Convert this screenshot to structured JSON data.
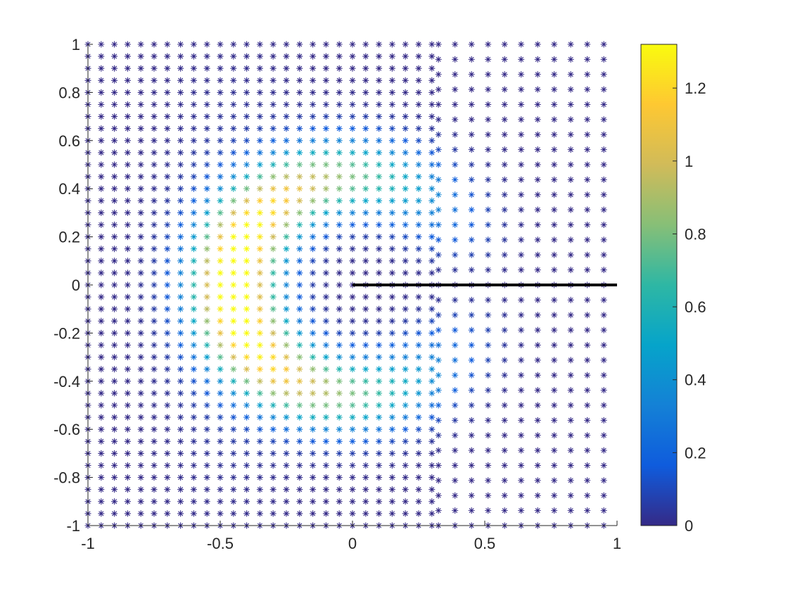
{
  "chart_data": {
    "type": "scatter",
    "title": "",
    "xlabel": "",
    "ylabel": "",
    "xlim": [
      -1,
      1
    ],
    "ylim": [
      -1,
      1
    ],
    "grid": false,
    "marker": "asterisk",
    "colormap": "parula",
    "x_ticks": [
      -1,
      -0.5,
      0,
      0.5,
      1
    ],
    "x_tick_labels": [
      "-1",
      "-0.5",
      "0",
      "0.5",
      "1"
    ],
    "y_ticks": [
      -1,
      -0.8,
      -0.6,
      -0.4,
      -0.2,
      0,
      0.2,
      0.4,
      0.6,
      0.8,
      1
    ],
    "y_tick_labels": [
      "-1",
      "-0.8",
      "-0.6",
      "-0.4",
      "-0.2",
      "0",
      "0.2",
      "0.4",
      "0.6",
      "0.8",
      "1"
    ],
    "colorbar": {
      "range": [
        0,
        1.32
      ],
      "ticks": [
        0,
        0.2,
        0.4,
        0.6,
        0.8,
        1,
        1.2
      ],
      "tick_labels": [
        "0",
        "0.2",
        "0.4",
        "0.6",
        "0.8",
        "1",
        "1.2"
      ]
    },
    "line_segment": {
      "x": [
        0,
        1
      ],
      "y": [
        0,
        0
      ],
      "color": "#000000"
    },
    "point_density": {
      "fine_region": "x < 0.3",
      "coarse_region": "x > 0.3"
    },
    "field": {
      "description": "value field over square domain",
      "peak_value": 1.32,
      "peak_location": [
        -0.45,
        0
      ],
      "low_near": [
        0,
        0
      ],
      "low_right_region": "x > 0.3"
    }
  },
  "colors": {
    "axis": "#262626",
    "parula": [
      "#352a87",
      "#0f5cdd",
      "#1481d6",
      "#06a4ca",
      "#2eb7a4",
      "#87bf77",
      "#d1bb59",
      "#fec832",
      "#f9fb0e"
    ]
  }
}
